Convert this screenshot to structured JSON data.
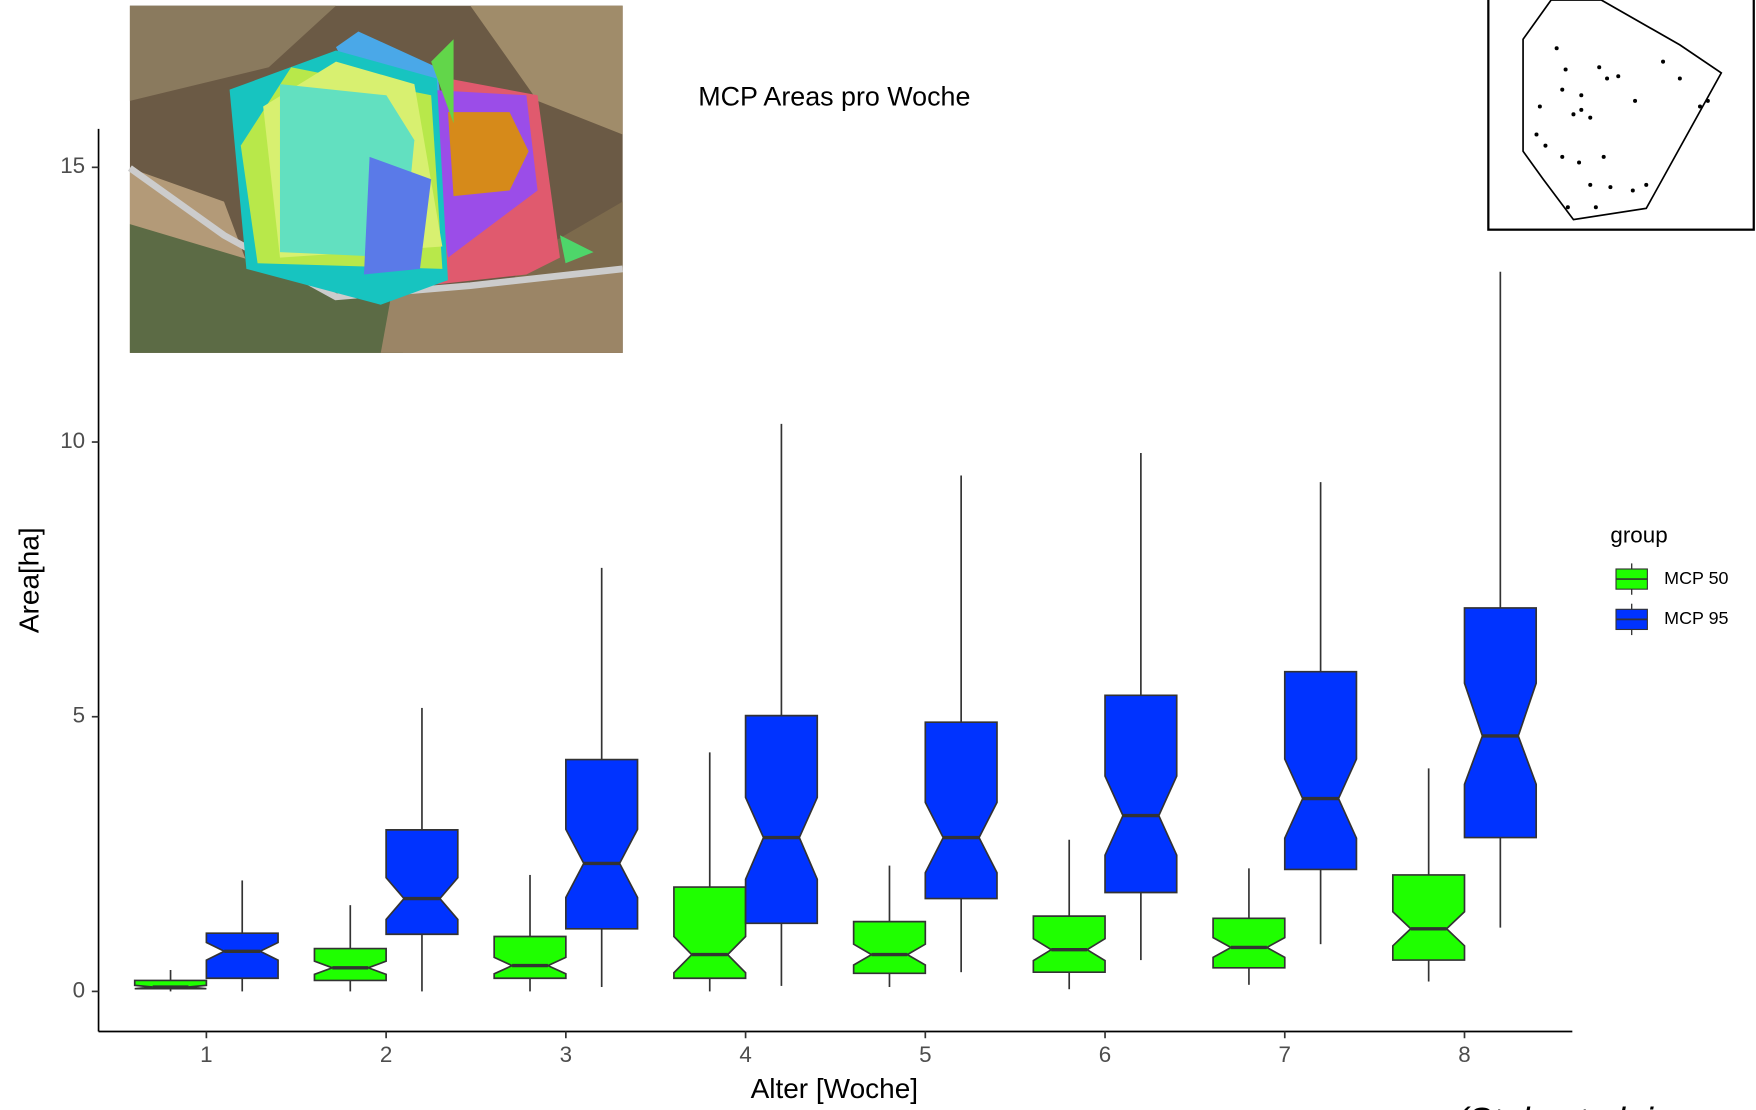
{
  "chart_data": {
    "type": "boxplot",
    "title": "MCP Areas pro Woche",
    "x_label": "Alter [Woche]",
    "y_label": "Area[ha]",
    "legend_title": "group",
    "annotation": "(Stolz et al. i",
    "categories": [
      "1",
      "2",
      "3",
      "4",
      "5",
      "6",
      "7",
      "8"
    ],
    "ylim": [
      -0.73,
      15.7
    ],
    "yticks": [
      0,
      5,
      10,
      15
    ],
    "notched": true,
    "series": [
      {
        "name": "MCP 50",
        "color": "#1fff00",
        "min": [
          0,
          0,
          0,
          0,
          0.08,
          0.04,
          0.12,
          0.18
        ],
        "q1": [
          0.05,
          0.2,
          0.24,
          0.24,
          0.33,
          0.35,
          0.43,
          0.57
        ],
        "median": [
          0.08,
          0.43,
          0.47,
          0.67,
          0.67,
          0.76,
          0.8,
          1.14
        ],
        "q3": [
          0.2,
          0.78,
          1.0,
          1.9,
          1.27,
          1.37,
          1.33,
          2.12
        ],
        "max": [
          0.39,
          1.57,
          2.12,
          4.35,
          2.29,
          2.76,
          2.24,
          4.06
        ],
        "notch_low": [
          0.05,
          0.31,
          0.32,
          0.34,
          0.48,
          0.56,
          0.62,
          0.83
        ],
        "notch_high": [
          0.11,
          0.55,
          0.62,
          1.0,
          0.86,
          0.96,
          0.98,
          1.45
        ]
      },
      {
        "name": "MCP 95",
        "color": "#0033ff",
        "min": [
          0,
          0,
          0.08,
          0.1,
          0.35,
          0.57,
          0.86,
          1.16
        ],
        "q1": [
          0.24,
          1.04,
          1.14,
          1.24,
          1.69,
          1.8,
          2.22,
          2.8
        ],
        "median": [
          0.73,
          1.69,
          2.33,
          2.8,
          2.8,
          3.2,
          3.51,
          4.65
        ],
        "q3": [
          1.06,
          2.94,
          4.22,
          5.02,
          4.9,
          5.39,
          5.82,
          6.98
        ],
        "max": [
          2.02,
          5.16,
          7.71,
          10.33,
          9.39,
          9.8,
          9.27,
          13.1
        ],
        "notch_low": [
          0.57,
          1.31,
          1.71,
          2.04,
          2.16,
          2.48,
          2.79,
          3.77
        ],
        "notch_high": [
          0.89,
          2.07,
          2.95,
          3.53,
          3.44,
          3.92,
          4.23,
          5.61
        ]
      }
    ]
  }
}
